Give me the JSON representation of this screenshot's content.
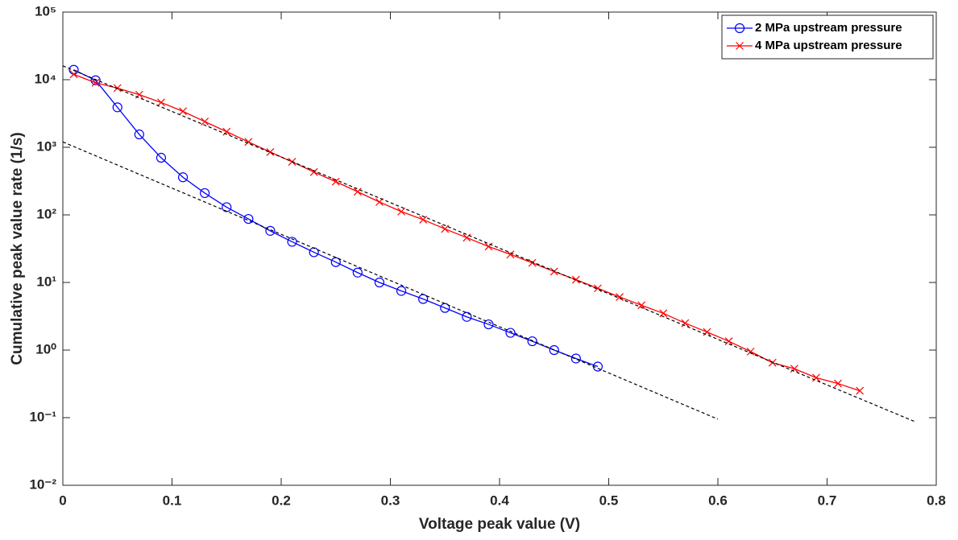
{
  "chart_data": {
    "type": "line",
    "xlabel": "Voltage peak value (V)",
    "ylabel": "Cumulative peak value rate (1/s)",
    "log_y": true,
    "legend": "northeast",
    "xlim": [
      0,
      0.8
    ],
    "xticks": [
      0,
      0.1,
      0.2,
      0.3,
      0.4,
      0.5,
      0.6,
      0.7,
      0.8
    ],
    "ylim": [
      0.01,
      100000
    ],
    "yticks": [
      {
        "value": 0.01,
        "label": "10⁻²"
      },
      {
        "value": 0.1,
        "label": "10⁻¹"
      },
      {
        "value": 1,
        "label": "10⁰"
      },
      {
        "value": 10,
        "label": "10¹"
      },
      {
        "value": 100,
        "label": "10²"
      },
      {
        "value": 1000,
        "label": "10³"
      },
      {
        "value": 10000,
        "label": "10⁴"
      },
      {
        "value": 100000,
        "label": "10⁵"
      }
    ],
    "series": [
      {
        "name": "2 MPa upstream pressure",
        "color": "#0000ff",
        "marker": "o",
        "x": [
          0.01,
          0.03,
          0.05,
          0.07,
          0.09,
          0.11,
          0.13,
          0.15,
          0.17,
          0.19,
          0.21,
          0.23,
          0.25,
          0.27,
          0.29,
          0.31,
          0.33,
          0.35,
          0.37,
          0.39,
          0.41,
          0.43,
          0.45,
          0.47,
          0.49
        ],
        "values": [
          14000,
          9800,
          3900,
          1550,
          700,
          360,
          210,
          130,
          87,
          58,
          40,
          28,
          20,
          14,
          10,
          7.5,
          5.7,
          4.2,
          3.1,
          2.4,
          1.8,
          1.35,
          1.0,
          0.75,
          0.57
        ]
      },
      {
        "name": "4 MPa upstream pressure",
        "color": "#ff0000",
        "marker": "x",
        "x": [
          0.01,
          0.03,
          0.05,
          0.07,
          0.09,
          0.11,
          0.13,
          0.15,
          0.17,
          0.19,
          0.21,
          0.23,
          0.25,
          0.27,
          0.29,
          0.31,
          0.33,
          0.35,
          0.37,
          0.39,
          0.41,
          0.43,
          0.45,
          0.47,
          0.49,
          0.51,
          0.53,
          0.55,
          0.57,
          0.59,
          0.61,
          0.63,
          0.65,
          0.67,
          0.69,
          0.71,
          0.73
        ],
        "values": [
          12000,
          9000,
          7500,
          6000,
          4600,
          3400,
          2400,
          1700,
          1200,
          850,
          610,
          430,
          310,
          220,
          155,
          112,
          85,
          62,
          46,
          34,
          26,
          19.5,
          14.5,
          11,
          8.2,
          6.1,
          4.6,
          3.5,
          2.5,
          1.85,
          1.35,
          0.95,
          0.65,
          0.53,
          0.39,
          0.32,
          0.25
        ]
      },
      {
        "color": "#000000",
        "style": "dashed",
        "x": [
          0,
          0.6
        ],
        "values": [
          1200,
          0.095
        ]
      },
      {
        "color": "#000000",
        "style": "dashed",
        "x": [
          0,
          0.78
        ],
        "values": [
          16000,
          0.088
        ]
      }
    ]
  }
}
